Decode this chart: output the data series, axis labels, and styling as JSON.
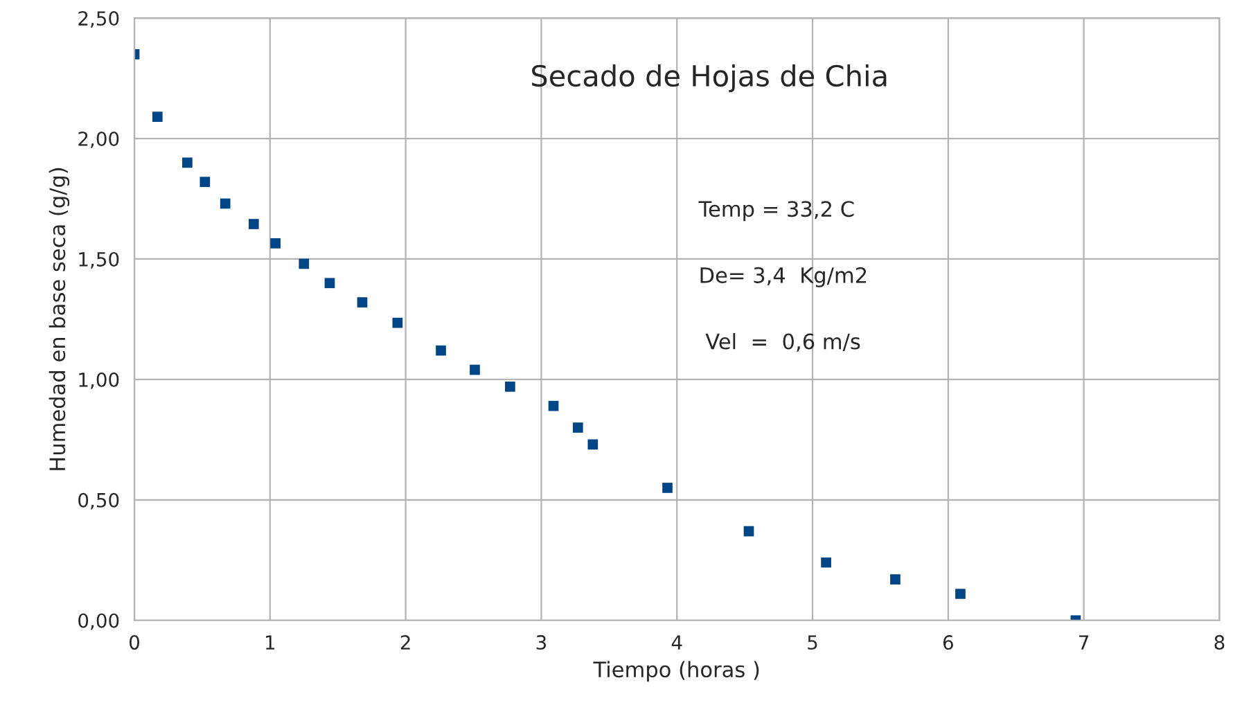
{
  "chart_data": {
    "type": "scatter",
    "title": "Secado de Hojas de Chia",
    "xlabel": "Tiempo (horas )",
    "ylabel": "Humedad en base seca (g/g)",
    "annotations": [
      "Temp = 33,2 C",
      "De= 3,4  Kg/m2",
      " Vel  =  0,6 m/s"
    ],
    "x": [
      0,
      0.17,
      0.39,
      0.52,
      0.67,
      0.88,
      1.04,
      1.25,
      1.44,
      1.68,
      1.94,
      2.26,
      2.51,
      2.77,
      3.09,
      3.27,
      3.38,
      3.93,
      4.53,
      5.1,
      5.61,
      6.09,
      6.94
    ],
    "series": [
      {
        "color": "#004586",
        "values": [
          2.35,
          2.09,
          1.9,
          1.82,
          1.73,
          1.645,
          1.565,
          1.48,
          1.4,
          1.32,
          1.235,
          1.12,
          1.04,
          0.97,
          0.89,
          0.8,
          0.73,
          0.55,
          0.37,
          0.24,
          0.17,
          0.11,
          0.0
        ]
      }
    ],
    "xlim": [
      0,
      8
    ],
    "xticks": [
      0,
      1,
      2,
      3,
      4,
      5,
      6,
      7,
      8
    ],
    "ylim": [
      0,
      2.5
    ],
    "yticks": [
      {
        "value": 0,
        "label": "0,00"
      },
      {
        "value": 0.5,
        "label": "0,50"
      },
      {
        "value": 1,
        "label": "1,00"
      },
      {
        "value": 1.5,
        "label": "1,50"
      },
      {
        "value": 2,
        "label": "2,00"
      },
      {
        "value": 2.5,
        "label": "2,50"
      }
    ],
    "grid": true,
    "marker": "square",
    "legend": false
  }
}
